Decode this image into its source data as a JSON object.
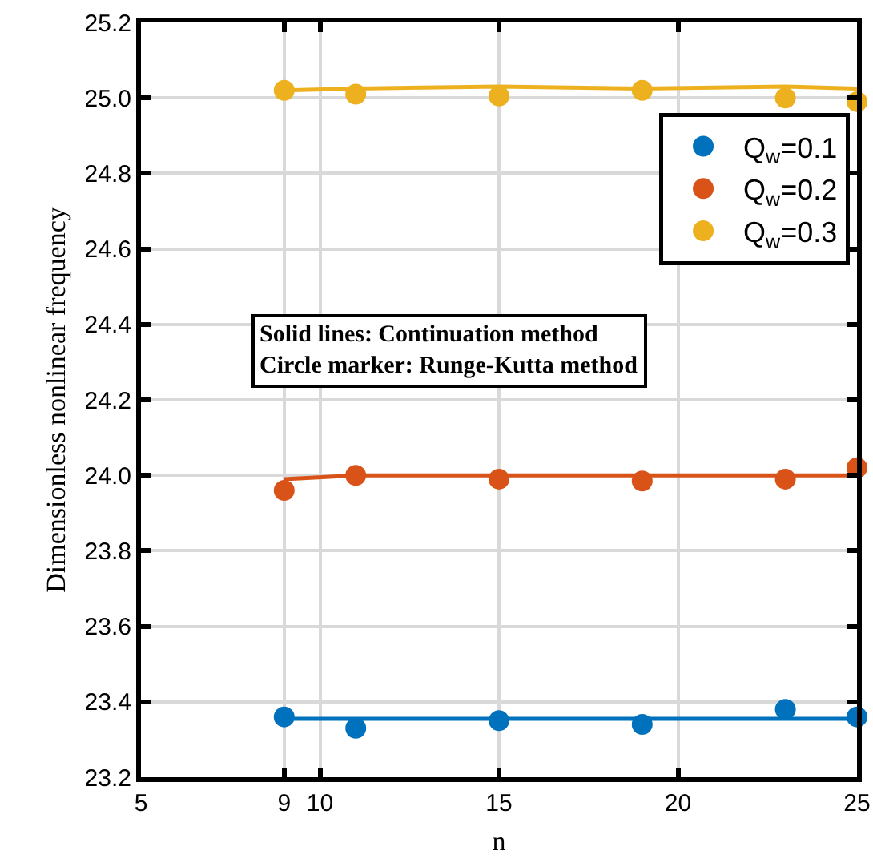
{
  "chart_data": {
    "type": "scatter",
    "xlabel": "n",
    "ylabel": "Dimensionless nonlinear frequency",
    "xlim": [
      5,
      25
    ],
    "xticks": [
      5,
      9,
      10,
      15,
      20,
      25
    ],
    "ylim": [
      23.2,
      25.2
    ],
    "yticks": [
      23.2,
      23.4,
      23.6,
      23.8,
      {
        "value": 24,
        "label": "24.0"
      },
      24.2,
      24.4,
      24.6,
      24.8,
      {
        "value": 25,
        "label": "25.0"
      },
      25.2
    ],
    "grid": true,
    "legend": "top right",
    "marker": "circle",
    "annotations": [
      "Solid lines: Continuation method",
      "Circle marker: Runge-Kutta method"
    ],
    "series": [
      {
        "type": "line",
        "marker": "none",
        "color": "#0072bd",
        "x": [
          9,
          11,
          15,
          19,
          23,
          25
        ],
        "values": [
          23.355,
          23.355,
          23.355,
          23.355,
          23.355,
          23.355
        ]
      },
      {
        "type": "line",
        "marker": "none",
        "color": "#d95319",
        "x": [
          9,
          11,
          15,
          19,
          23,
          25
        ],
        "values": [
          23.99,
          24.0,
          24.0,
          24.0,
          24.0,
          24.0
        ]
      },
      {
        "type": "line",
        "marker": "none",
        "color": "#edb120",
        "x": [
          9,
          11,
          15,
          19,
          23,
          25
        ],
        "values": [
          25.02,
          25.025,
          25.03,
          25.025,
          25.03,
          25.025
        ]
      },
      {
        "name": "Q$_{w}$=0.1",
        "color": "#0072bd",
        "x": [
          9,
          11,
          15,
          19,
          23,
          25
        ],
        "values": [
          23.36,
          23.33,
          23.35,
          23.34,
          23.38,
          23.36
        ]
      },
      {
        "name": "Q$_{w}$=0.2",
        "color": "#d95319",
        "x": [
          9,
          11,
          15,
          19,
          23,
          25
        ],
        "values": [
          23.96,
          24.0,
          23.99,
          23.985,
          23.99,
          24.02
        ]
      },
      {
        "name": "Q$_{w}$=0.3",
        "color": "#edb120",
        "x": [
          9,
          11,
          15,
          19,
          23,
          25
        ],
        "values": [
          25.02,
          25.01,
          25.005,
          25.02,
          25.0,
          24.99
        ]
      }
    ]
  }
}
